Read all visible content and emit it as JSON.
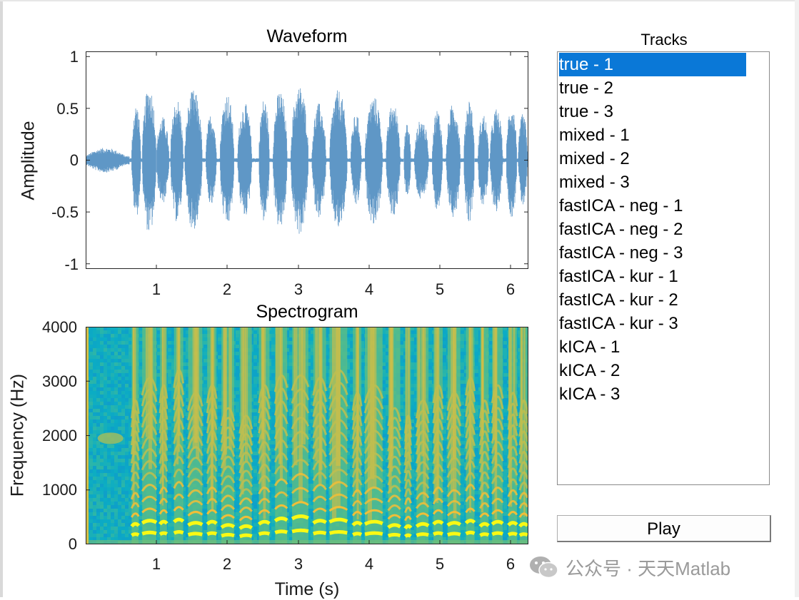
{
  "waveform": {
    "title": "Waveform",
    "ylabel": "Amplitude",
    "yticks": [
      "1",
      "0.5",
      "0",
      "-0.5",
      "-1"
    ],
    "xticks": [
      "1",
      "2",
      "3",
      "4",
      "5",
      "6"
    ],
    "color": "#5f97c6"
  },
  "spectrogram": {
    "title": "Spectrogram",
    "ylabel": "Frequency (Hz)",
    "xlabel": "Time (s)",
    "yticks": [
      "4000",
      "3000",
      "2000",
      "1000",
      "0"
    ],
    "xticks": [
      "1",
      "2",
      "3",
      "4",
      "5",
      "6"
    ]
  },
  "chart_data": [
    {
      "type": "line",
      "title": "Waveform",
      "xlabel": "",
      "ylabel": "Amplitude",
      "xlim": [
        0,
        6.25
      ],
      "ylim": [
        -1.05,
        1.05
      ],
      "segments": [
        {
          "start": 0.0,
          "end": 0.62,
          "amp": 0.12
        },
        {
          "start": 0.65,
          "end": 0.78,
          "amp": 0.55
        },
        {
          "start": 0.8,
          "end": 1.0,
          "amp": 0.72
        },
        {
          "start": 1.0,
          "end": 1.18,
          "amp": 0.42
        },
        {
          "start": 1.2,
          "end": 1.38,
          "amp": 0.6
        },
        {
          "start": 1.4,
          "end": 1.65,
          "amp": 0.68
        },
        {
          "start": 1.7,
          "end": 1.85,
          "amp": 0.45
        },
        {
          "start": 1.9,
          "end": 2.1,
          "amp": 0.65
        },
        {
          "start": 2.15,
          "end": 2.35,
          "amp": 0.55
        },
        {
          "start": 2.45,
          "end": 2.6,
          "amp": 0.6
        },
        {
          "start": 2.65,
          "end": 2.85,
          "amp": 0.68
        },
        {
          "start": 2.9,
          "end": 3.15,
          "amp": 0.72
        },
        {
          "start": 3.2,
          "end": 3.4,
          "amp": 0.55
        },
        {
          "start": 3.45,
          "end": 3.7,
          "amp": 0.68
        },
        {
          "start": 3.75,
          "end": 3.9,
          "amp": 0.45
        },
        {
          "start": 3.95,
          "end": 4.2,
          "amp": 0.62
        },
        {
          "start": 4.25,
          "end": 4.45,
          "amp": 0.55
        },
        {
          "start": 4.5,
          "end": 4.6,
          "amp": 0.35
        },
        {
          "start": 4.65,
          "end": 4.85,
          "amp": 0.4
        },
        {
          "start": 4.9,
          "end": 5.05,
          "amp": 0.5
        },
        {
          "start": 5.1,
          "end": 5.3,
          "amp": 0.55
        },
        {
          "start": 5.35,
          "end": 5.5,
          "amp": 0.6
        },
        {
          "start": 5.55,
          "end": 5.7,
          "amp": 0.45
        },
        {
          "start": 5.72,
          "end": 5.9,
          "amp": 0.5
        },
        {
          "start": 5.95,
          "end": 6.1,
          "amp": 0.55
        },
        {
          "start": 6.12,
          "end": 6.25,
          "amp": 0.45
        }
      ]
    },
    {
      "type": "heatmap",
      "title": "Spectrogram",
      "xlabel": "Time (s)",
      "ylabel": "Frequency (Hz)",
      "xlim": [
        0,
        6.25
      ],
      "ylim": [
        0,
        4000
      ],
      "voiced_bursts": [
        {
          "start": 0.65,
          "end": 0.75,
          "f0": 180
        },
        {
          "start": 0.8,
          "end": 1.0,
          "f0": 210
        },
        {
          "start": 1.05,
          "end": 1.15,
          "f0": 200
        },
        {
          "start": 1.25,
          "end": 1.38,
          "f0": 220
        },
        {
          "start": 1.45,
          "end": 1.65,
          "f0": 190
        },
        {
          "start": 1.72,
          "end": 1.85,
          "f0": 200
        },
        {
          "start": 1.92,
          "end": 2.1,
          "f0": 170
        },
        {
          "start": 2.18,
          "end": 2.35,
          "f0": 160
        },
        {
          "start": 2.45,
          "end": 2.6,
          "f0": 200
        },
        {
          "start": 2.68,
          "end": 2.85,
          "f0": 230
        },
        {
          "start": 2.92,
          "end": 3.15,
          "f0": 250
        },
        {
          "start": 3.22,
          "end": 3.4,
          "f0": 210
        },
        {
          "start": 3.45,
          "end": 3.7,
          "f0": 220
        },
        {
          "start": 3.78,
          "end": 3.9,
          "f0": 190
        },
        {
          "start": 3.95,
          "end": 4.2,
          "f0": 200
        },
        {
          "start": 4.28,
          "end": 4.45,
          "f0": 170
        },
        {
          "start": 4.52,
          "end": 4.6,
          "f0": 160
        },
        {
          "start": 4.68,
          "end": 4.85,
          "f0": 180
        },
        {
          "start": 4.92,
          "end": 5.05,
          "f0": 200
        },
        {
          "start": 5.12,
          "end": 5.3,
          "f0": 190
        },
        {
          "start": 5.38,
          "end": 5.5,
          "f0": 210
        },
        {
          "start": 5.58,
          "end": 5.7,
          "f0": 180
        },
        {
          "start": 5.75,
          "end": 5.9,
          "f0": 200
        },
        {
          "start": 5.98,
          "end": 6.1,
          "f0": 190
        },
        {
          "start": 6.14,
          "end": 6.25,
          "f0": 180
        }
      ]
    }
  ],
  "tracks": {
    "title": "Tracks",
    "selected_index": 0,
    "items": [
      "true - 1",
      "true - 2",
      "true - 3",
      "mixed - 1",
      "mixed - 2",
      "mixed - 3",
      "fastICA - neg - 1",
      "fastICA - neg - 2",
      "fastICA - neg - 3",
      "fastICA - kur - 1",
      "fastICA - kur - 2",
      "fastICA - kur - 3",
      "kICA - 1",
      "kICA - 2",
      "kICA - 3"
    ],
    "selection_color": "#0a78d7"
  },
  "play_button": {
    "label": "Play"
  },
  "watermark": {
    "text": "公众号 · 天天Matlab",
    "icon": "wechat-icon"
  }
}
